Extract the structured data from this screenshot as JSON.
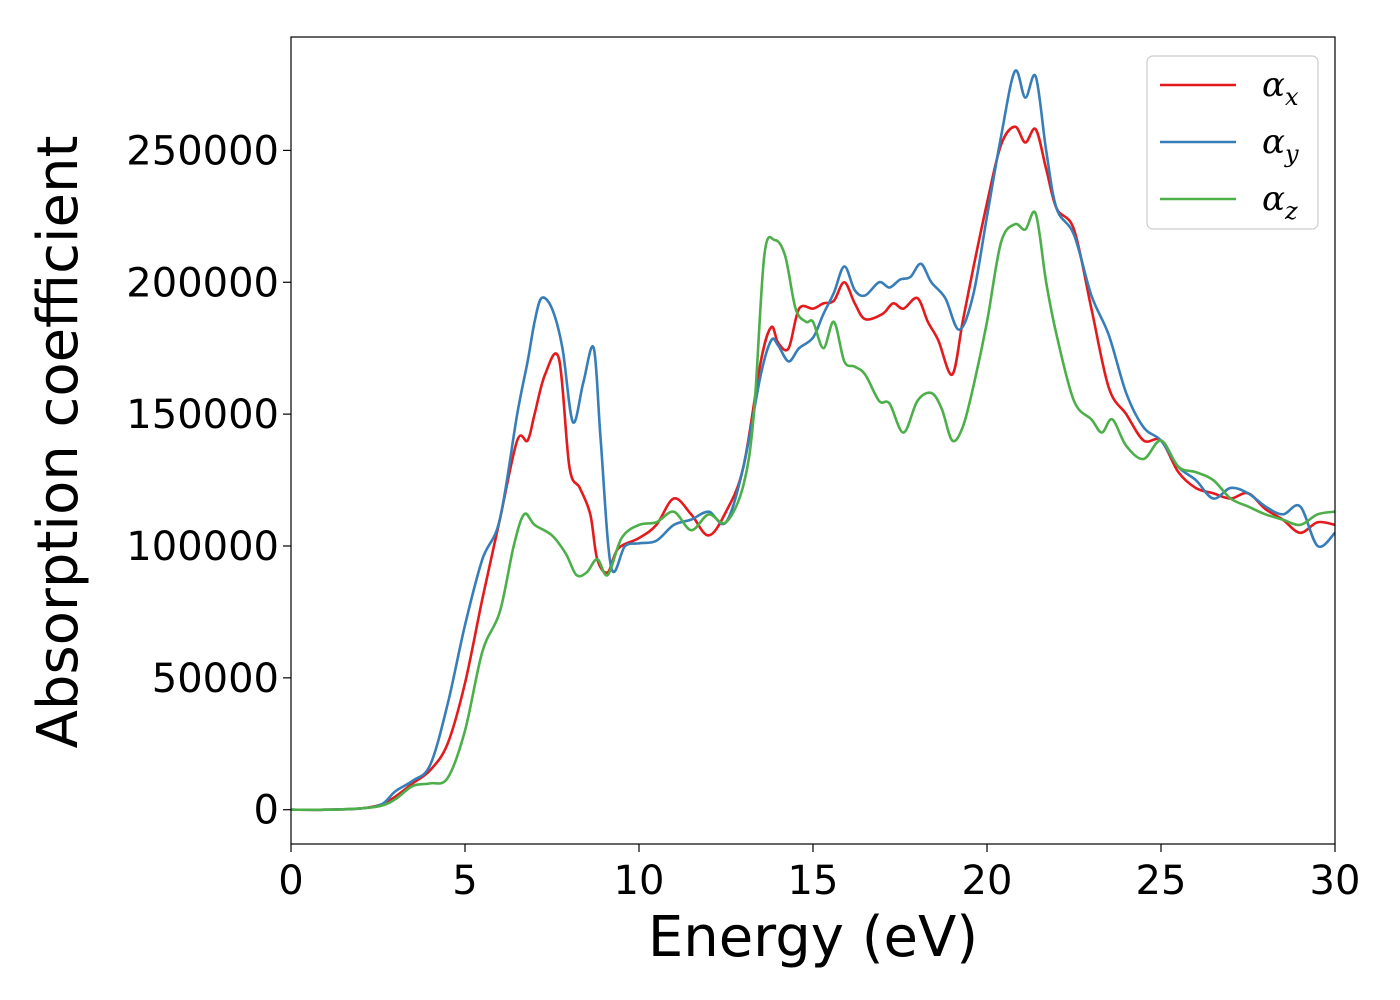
{
  "chart_data": {
    "type": "line",
    "title": "",
    "xlabel": "Energy (eV)",
    "ylabel": "Absorption coefficient",
    "xlim": [
      0,
      30
    ],
    "ylim": [
      -13000,
      293000
    ],
    "xticks": [
      0,
      5,
      10,
      15,
      20,
      25,
      30
    ],
    "yticks": [
      0,
      50000,
      100000,
      150000,
      200000,
      250000
    ],
    "grid": false,
    "legend_position": "top-right",
    "series": [
      {
        "name": "αx",
        "legend_base": "α",
        "legend_sub": "x",
        "color": "#e41a1c",
        "x": [
          0,
          1,
          2,
          2.6,
          3,
          3.5,
          4,
          4.5,
          5,
          5.5,
          6,
          6.5,
          6.8,
          7,
          7.3,
          7.7,
          8,
          8.3,
          8.6,
          8.8,
          9.1,
          9.4,
          10,
          10.5,
          11,
          11.5,
          12,
          12.5,
          13,
          13.5,
          13.8,
          14,
          14.3,
          14.6,
          15,
          15.3,
          15.6,
          15.9,
          16.2,
          16.5,
          17,
          17.3,
          17.6,
          18,
          18.3,
          18.6,
          19,
          19.3,
          19.6,
          20,
          20.4,
          20.8,
          21.1,
          21.4,
          21.7,
          22,
          22.5,
          23,
          23.5,
          24,
          24.5,
          25,
          25.5,
          26,
          26.5,
          27,
          27.5,
          28,
          28.5,
          29,
          29.5,
          30
        ],
        "y": [
          0,
          0,
          500,
          2000,
          5000,
          10000,
          15000,
          25000,
          48000,
          80000,
          110000,
          140000,
          140000,
          150000,
          165000,
          171000,
          130000,
          122000,
          112000,
          95000,
          90000,
          99000,
          103000,
          108000,
          118000,
          112000,
          104000,
          113000,
          130000,
          170000,
          183000,
          177000,
          175000,
          190000,
          190000,
          192000,
          193000,
          200000,
          192000,
          186000,
          188000,
          192000,
          190000,
          194000,
          185000,
          178000,
          165000,
          185000,
          205000,
          230000,
          252000,
          259000,
          253000,
          258000,
          243000,
          228000,
          220000,
          190000,
          160000,
          150000,
          140000,
          140000,
          128000,
          122000,
          120000,
          118000,
          120000,
          114000,
          110000,
          105000,
          109000,
          108000
        ]
      },
      {
        "name": "αy",
        "legend_base": "α",
        "legend_sub": "y",
        "color": "#377eb8",
        "x": [
          0,
          1,
          2,
          2.6,
          3,
          3.5,
          4,
          4.5,
          5,
          5.5,
          6,
          6.5,
          6.8,
          7,
          7.2,
          7.5,
          7.8,
          8.1,
          8.4,
          8.7,
          8.9,
          9.2,
          9.6,
          10,
          10.5,
          11,
          11.5,
          12,
          12.5,
          13,
          13.5,
          13.8,
          14,
          14.3,
          14.6,
          15,
          15.3,
          15.6,
          15.9,
          16.2,
          16.5,
          16.9,
          17.2,
          17.5,
          17.8,
          18.1,
          18.4,
          18.8,
          19.2,
          19.6,
          20,
          20.4,
          20.8,
          21.1,
          21.4,
          21.7,
          22,
          22.5,
          23,
          23.5,
          24,
          24.5,
          25,
          25.5,
          26,
          26.5,
          27,
          27.5,
          28,
          28.5,
          29,
          29.5,
          30
        ],
        "y": [
          0,
          0,
          500,
          2000,
          7000,
          11000,
          17000,
          40000,
          70000,
          95000,
          110000,
          150000,
          170000,
          185000,
          194000,
          190000,
          175000,
          147000,
          162000,
          175000,
          140000,
          92000,
          100000,
          101000,
          102000,
          108000,
          110000,
          113000,
          109000,
          130000,
          165000,
          178000,
          176000,
          170000,
          175000,
          179000,
          188000,
          196000,
          206000,
          197000,
          195000,
          200000,
          198000,
          201000,
          202000,
          207000,
          200000,
          194000,
          182000,
          195000,
          225000,
          255000,
          280000,
          270000,
          278000,
          250000,
          228000,
          218000,
          195000,
          180000,
          158000,
          145000,
          140000,
          130000,
          125000,
          118000,
          122000,
          120000,
          115000,
          112000,
          115000,
          100000,
          105000
        ]
      },
      {
        "name": "αz",
        "legend_base": "α",
        "legend_sub": "z",
        "color": "#4daf4a",
        "x": [
          0,
          1,
          2,
          2.6,
          3,
          3.5,
          4,
          4.5,
          5,
          5.5,
          6,
          6.4,
          6.7,
          7,
          7.5,
          7.9,
          8.2,
          8.5,
          8.8,
          9.1,
          9.5,
          10,
          10.5,
          11,
          11.5,
          12,
          12.5,
          13,
          13.3,
          13.6,
          13.9,
          14.2,
          14.5,
          14.8,
          15,
          15.3,
          15.6,
          15.9,
          16.2,
          16.5,
          16.9,
          17.2,
          17.6,
          18,
          18.4,
          18.7,
          19,
          19.3,
          19.6,
          20,
          20.4,
          20.8,
          21.1,
          21.4,
          21.7,
          22,
          22.5,
          23,
          23.3,
          23.6,
          24,
          24.5,
          25,
          25.5,
          26,
          26.5,
          27,
          27.5,
          28,
          28.5,
          29,
          29.5,
          30
        ],
        "y": [
          0,
          0,
          500,
          1500,
          4000,
          9000,
          10000,
          12000,
          30000,
          60000,
          75000,
          100000,
          112000,
          108000,
          104000,
          97000,
          89000,
          90000,
          95000,
          89000,
          103000,
          108000,
          109000,
          113000,
          106000,
          112000,
          109000,
          123000,
          150000,
          210000,
          216000,
          210000,
          190000,
          185000,
          185000,
          175000,
          185000,
          170000,
          168000,
          165000,
          155000,
          154000,
          143000,
          155000,
          158000,
          152000,
          140000,
          145000,
          160000,
          185000,
          215000,
          222000,
          220000,
          226000,
          200000,
          180000,
          155000,
          148000,
          143000,
          148000,
          138000,
          133000,
          140000,
          130000,
          128000,
          125000,
          118000,
          115000,
          112000,
          110000,
          108000,
          112000,
          113000
        ]
      }
    ]
  }
}
